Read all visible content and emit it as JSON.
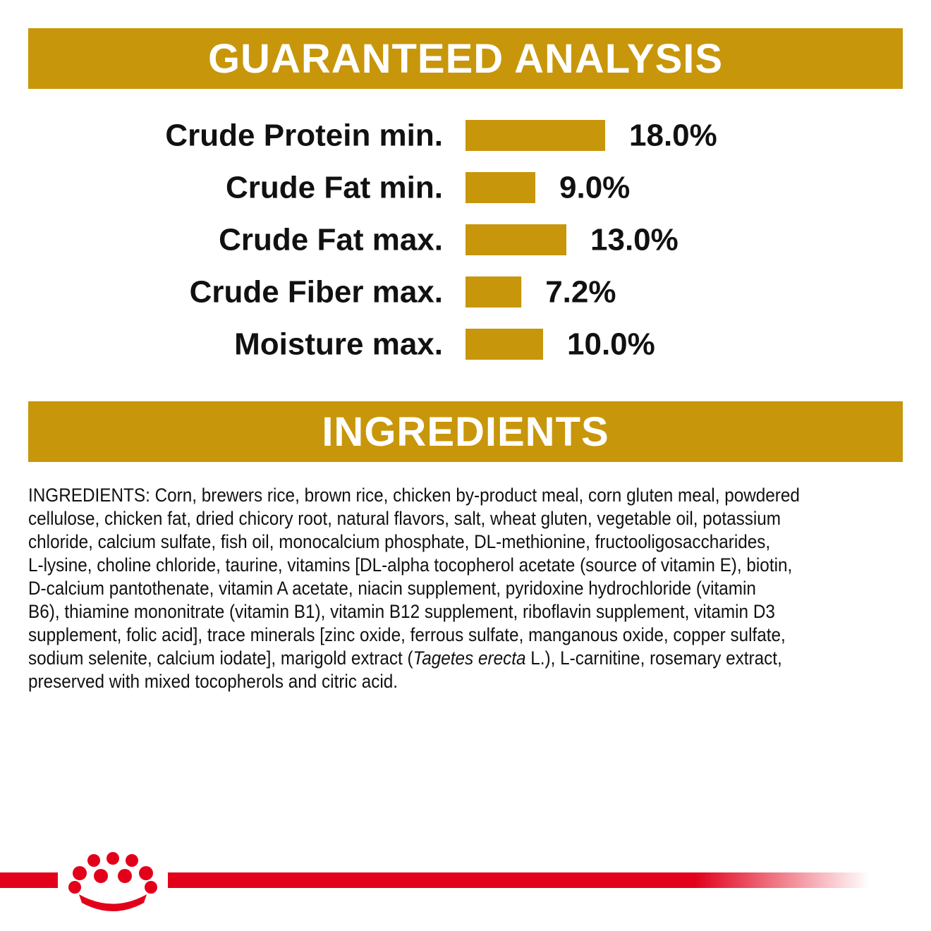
{
  "header": {
    "title": "GUARANTEED ANALYSIS"
  },
  "chart_data": {
    "type": "bar",
    "orientation": "horizontal",
    "color": "#c8960a",
    "categories": [
      "Crude Protein min.",
      "Crude Fat min.",
      "Crude Fat max.",
      "Crude Fiber max.",
      "Moisture max."
    ],
    "values": [
      18.0,
      9.0,
      13.0,
      7.2,
      10.0
    ],
    "value_labels": [
      "18.0%",
      "9.0%",
      "13.0%",
      "7.2%",
      "10.0%"
    ]
  },
  "ingredients": {
    "title": "INGREDIENTS",
    "lines": [
      "INGREDIENTS: Corn, brewers rice, brown rice, chicken by-product meal, corn gluten meal, powdered",
      "cellulose, chicken fat, dried chicory root, natural flavors, salt, wheat gluten, vegetable oil, potassium",
      "chloride, calcium sulfate, fish oil, monocalcium phosphate, DL-methionine, fructooligosaccharides,",
      "L-lysine, choline chloride, taurine, vitamins [DL-alpha tocopherol acetate (source of vitamin E), biotin,",
      "D-calcium pantothenate, vitamin A acetate, niacin supplement, pyridoxine hydrochloride (vitamin",
      "B6), thiamine mononitrate (vitamin B1), vitamin B12 supplement, riboflavin supplement, vitamin D3",
      "supplement, folic acid], trace minerals [zinc oxide, ferrous sulfate, manganous oxide, copper sulfate,",
      [
        "sodium selenite, calcium iodate], marigold extract (",
        "Tagetes erecta",
        " L.), L-carnitine, rosemary extract,"
      ],
      "preserved with mixed tocopherols and citric acid."
    ]
  }
}
